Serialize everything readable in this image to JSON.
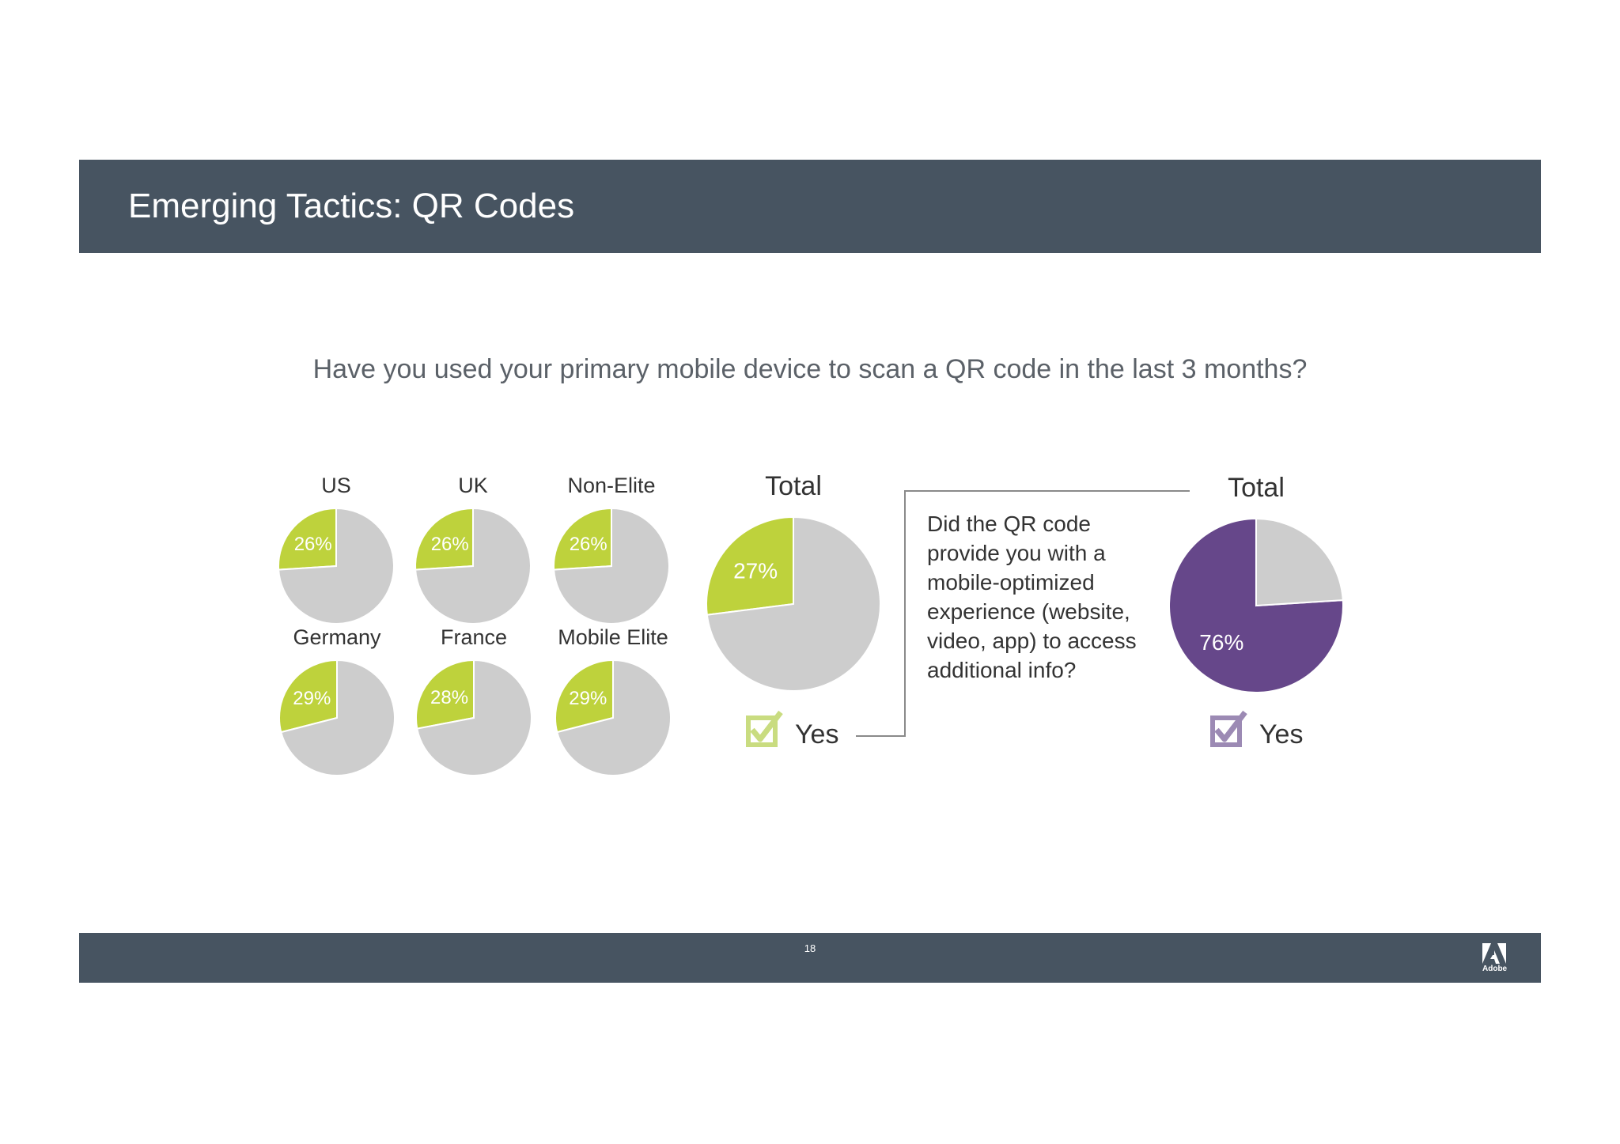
{
  "header": {
    "title": "Emerging Tactics: QR Codes"
  },
  "question": "Have you used your primary mobile device to scan a QR code in the last 3 months?",
  "callout": {
    "text": "Did the QR code provide you with a mobile-optimized experience (website, video, app) to access additional info?"
  },
  "footer": {
    "page_number": "18",
    "logo_text": "Adobe"
  },
  "colors": {
    "bar": "#475461",
    "green": "#bed23c",
    "purple": "#66478a",
    "grey": "#cdcdcd"
  },
  "chart_data": [
    {
      "type": "pie",
      "title": "US",
      "slices": [
        {
          "label": "26%",
          "value": 26,
          "color": "#bed23c"
        },
        {
          "label": "",
          "value": 74,
          "color": "#cdcdcd"
        }
      ]
    },
    {
      "type": "pie",
      "title": "UK",
      "slices": [
        {
          "label": "26%",
          "value": 26,
          "color": "#bed23c"
        },
        {
          "label": "",
          "value": 74,
          "color": "#cdcdcd"
        }
      ]
    },
    {
      "type": "pie",
      "title": "Non-Elite",
      "slices": [
        {
          "label": "26%",
          "value": 26,
          "color": "#bed23c"
        },
        {
          "label": "",
          "value": 74,
          "color": "#cdcdcd"
        }
      ]
    },
    {
      "type": "pie",
      "title": "Germany",
      "slices": [
        {
          "label": "29%",
          "value": 29,
          "color": "#bed23c"
        },
        {
          "label": "",
          "value": 71,
          "color": "#cdcdcd"
        }
      ]
    },
    {
      "type": "pie",
      "title": "France",
      "slices": [
        {
          "label": "28%",
          "value": 28,
          "color": "#bed23c"
        },
        {
          "label": "",
          "value": 72,
          "color": "#cdcdcd"
        }
      ]
    },
    {
      "type": "pie",
      "title": "Mobile Elite",
      "slices": [
        {
          "label": "29%",
          "value": 29,
          "color": "#bed23c"
        },
        {
          "label": "",
          "value": 71,
          "color": "#cdcdcd"
        }
      ]
    },
    {
      "type": "pie",
      "title": "Total",
      "legend": "Yes",
      "slices": [
        {
          "label": "27%",
          "value": 27,
          "color": "#bed23c"
        },
        {
          "label": "",
          "value": 73,
          "color": "#cdcdcd"
        }
      ]
    },
    {
      "type": "pie",
      "title": "Total",
      "legend": "Yes",
      "slices": [
        {
          "label": "76%",
          "value": 76,
          "color": "#66478a"
        },
        {
          "label": "",
          "value": 24,
          "color": "#cdcdcd"
        }
      ]
    }
  ]
}
